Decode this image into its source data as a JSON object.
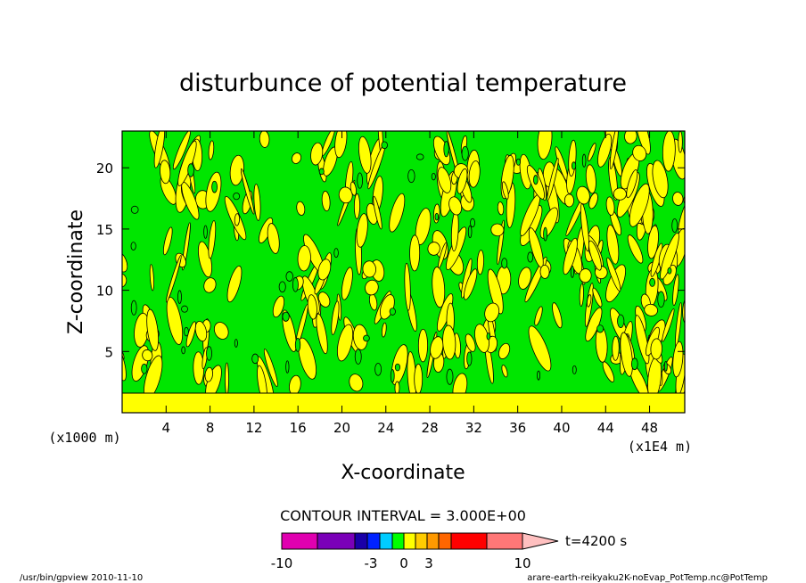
{
  "chart_data": {
    "type": "heatmap",
    "title": "disturbunce of potential temperature",
    "xlabel": "X-coordinate",
    "ylabel": "Z-coordinate",
    "x_unit_label": "(x1E4 m)",
    "y_unit_label": "(x1000 m)",
    "xlim": [
      0,
      51.2
    ],
    "ylim": [
      0,
      23
    ],
    "x_ticks": [
      4,
      8,
      12,
      16,
      20,
      24,
      28,
      32,
      36,
      40,
      44,
      48
    ],
    "y_ticks": [
      5,
      10,
      15,
      20
    ],
    "contour_interval_text": "CONTOUR INTERVAL = 3.000E+00",
    "time_label": "t=4200 s",
    "colorbar": {
      "levels": [
        -10,
        -3,
        0,
        3,
        10
      ],
      "tick_labels": [
        "-10",
        "-3",
        "0",
        "3",
        "10"
      ],
      "colors": [
        "#e000b0",
        "#7a00b8",
        "#1a00a8",
        "#0022ff",
        "#00ccff",
        "#00ff00",
        "#ffff00",
        "#ffcc00",
        "#ff9900",
        "#ff6600",
        "#ff0000",
        "#ff7777",
        "#ffc0c0"
      ],
      "dominant_field_colors": {
        "green": "#00e600",
        "yellow": "#ffff00"
      }
    }
  },
  "footer": {
    "left": "/usr/bin/gpview   2010-11-10",
    "right": "arare-earth-reikyaku2K-noEvap_PotTemp.nc@PotTemp"
  }
}
